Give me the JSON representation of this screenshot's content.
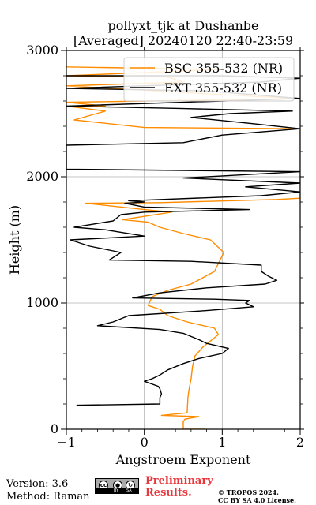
{
  "chart_data": {
    "type": "line",
    "title": "pollyxt_tjk at Dushanbe",
    "subtitle": "[Averaged] 20240120 22:40-23:59",
    "xlabel": "Angstroem Exponent",
    "ylabel": "Height (m)",
    "xlim": [
      -1,
      2
    ],
    "ylim": [
      0,
      3000
    ],
    "xticks": [
      "−1",
      "0",
      "1",
      "2"
    ],
    "yticks": [
      "0",
      "1000",
      "2000",
      "3000"
    ],
    "grid": true,
    "legend_position": "top-right",
    "series": [
      {
        "name": "BSC 355-532 (NR)",
        "color": "#ff8c00",
        "points": [
          [
            0.77,
            0
          ],
          [
            0.5,
            0
          ],
          [
            0.5,
            60
          ],
          [
            0.52,
            80
          ],
          [
            0.7,
            100
          ],
          [
            0.22,
            110
          ],
          [
            0.55,
            130
          ],
          [
            0.56,
            250
          ],
          [
            0.57,
            300
          ],
          [
            0.6,
            400
          ],
          [
            0.62,
            500
          ],
          [
            0.65,
            580
          ],
          [
            0.75,
            650
          ],
          [
            0.95,
            750
          ],
          [
            0.9,
            800
          ],
          [
            0.55,
            850
          ],
          [
            0.3,
            900
          ],
          [
            0.2,
            950
          ],
          [
            0.05,
            980
          ],
          [
            0.1,
            1050
          ],
          [
            0.3,
            1100
          ],
          [
            0.6,
            1150
          ],
          [
            0.9,
            1250
          ],
          [
            1.02,
            1400
          ],
          [
            0.85,
            1500
          ],
          [
            0.5,
            1550
          ],
          [
            0.2,
            1600
          ],
          [
            0.05,
            1640
          ],
          [
            -0.28,
            1660
          ],
          [
            0.35,
            1720
          ],
          [
            0.0,
            1740
          ],
          [
            -0.75,
            1790
          ],
          [
            0.2,
            1795
          ],
          [
            1.7,
            1820
          ],
          [
            2.0,
            1830
          ],
          [
            2.0,
            2380
          ],
          [
            0.0,
            2390
          ],
          [
            -0.9,
            2450
          ],
          [
            -0.5,
            2520
          ],
          [
            -1.0,
            2560
          ],
          [
            -0.5,
            2560
          ],
          [
            -1.0,
            2590
          ],
          [
            2.0,
            2620
          ],
          [
            1.3,
            2640
          ],
          [
            -1.0,
            2720
          ],
          [
            0.5,
            2750
          ],
          [
            0.3,
            2790
          ],
          [
            -1.0,
            2800
          ],
          [
            1.0,
            2850
          ],
          [
            -1.0,
            2870
          ]
        ]
      },
      {
        "name": "EXT 355-532 (NR)",
        "color": "#000000",
        "points": [
          [
            -0.87,
            190
          ],
          [
            0.2,
            200
          ],
          [
            0.2,
            250
          ],
          [
            0.22,
            280
          ],
          [
            0.2,
            320
          ],
          [
            0.18,
            340
          ],
          [
            0.0,
            380
          ],
          [
            0.1,
            400
          ],
          [
            0.2,
            430
          ],
          [
            0.3,
            470
          ],
          [
            0.5,
            520
          ],
          [
            0.7,
            560
          ],
          [
            1.0,
            600
          ],
          [
            1.08,
            640
          ],
          [
            0.8,
            680
          ],
          [
            0.7,
            710
          ],
          [
            0.5,
            760
          ],
          [
            0.2,
            790
          ],
          [
            -0.6,
            820
          ],
          [
            -0.4,
            850
          ],
          [
            -0.2,
            900
          ],
          [
            0.8,
            940
          ],
          [
            1.4,
            970
          ],
          [
            1.3,
            1000
          ],
          [
            1.35,
            1020
          ],
          [
            0.9,
            1030
          ],
          [
            -0.15,
            1040
          ],
          [
            0.2,
            1080
          ],
          [
            0.8,
            1120
          ],
          [
            1.55,
            1150
          ],
          [
            1.7,
            1180
          ],
          [
            1.6,
            1210
          ],
          [
            1.5,
            1250
          ],
          [
            1.5,
            1300
          ],
          [
            0.6,
            1330
          ],
          [
            -0.45,
            1340
          ],
          [
            -0.3,
            1400
          ],
          [
            -0.7,
            1450
          ],
          [
            -0.95,
            1500
          ],
          [
            0.0,
            1530
          ],
          [
            -0.3,
            1560
          ],
          [
            -0.5,
            1580
          ],
          [
            -0.9,
            1600
          ],
          [
            -0.4,
            1650
          ],
          [
            -0.3,
            1700
          ],
          [
            0.0,
            1720
          ],
          [
            1.35,
            1740
          ],
          [
            0.0,
            1760
          ],
          [
            -0.25,
            1790
          ],
          [
            0.0,
            1800
          ],
          [
            -0.2,
            1810
          ],
          [
            1.5,
            1850
          ],
          [
            2.0,
            1880
          ],
          [
            1.3,
            1920
          ],
          [
            2.0,
            1950
          ],
          [
            0.5,
            1990
          ],
          [
            2.0,
            2040
          ],
          [
            -1.0,
            2060
          ],
          [
            -1.0,
            2250
          ],
          [
            0.5,
            2270
          ],
          [
            1.0,
            2330
          ],
          [
            2.0,
            2380
          ],
          [
            1.4,
            2420
          ],
          [
            0.6,
            2470
          ],
          [
            1.1,
            2500
          ],
          [
            1.9,
            2520
          ],
          [
            0.5,
            2540
          ],
          [
            -1.0,
            2560
          ],
          [
            1.0,
            2600
          ],
          [
            2.0,
            2620
          ],
          [
            0.8,
            2680
          ],
          [
            -1.0,
            2700
          ],
          [
            1.5,
            2750
          ],
          [
            2.0,
            2780
          ],
          [
            1.0,
            2800
          ],
          [
            -1.0,
            2800
          ]
        ]
      }
    ]
  },
  "footer": {
    "version": "Version: 3.6",
    "method": "Method: Raman",
    "preliminary_line1": "Preliminary",
    "preliminary_line2": "Results.",
    "copyright_line1": "© TROPOS 2024.",
    "copyright_line2": "CC BY SA 4.0 License."
  },
  "license_badge": {
    "left": "cc",
    "tag1": "BY",
    "tag2": "SA"
  }
}
